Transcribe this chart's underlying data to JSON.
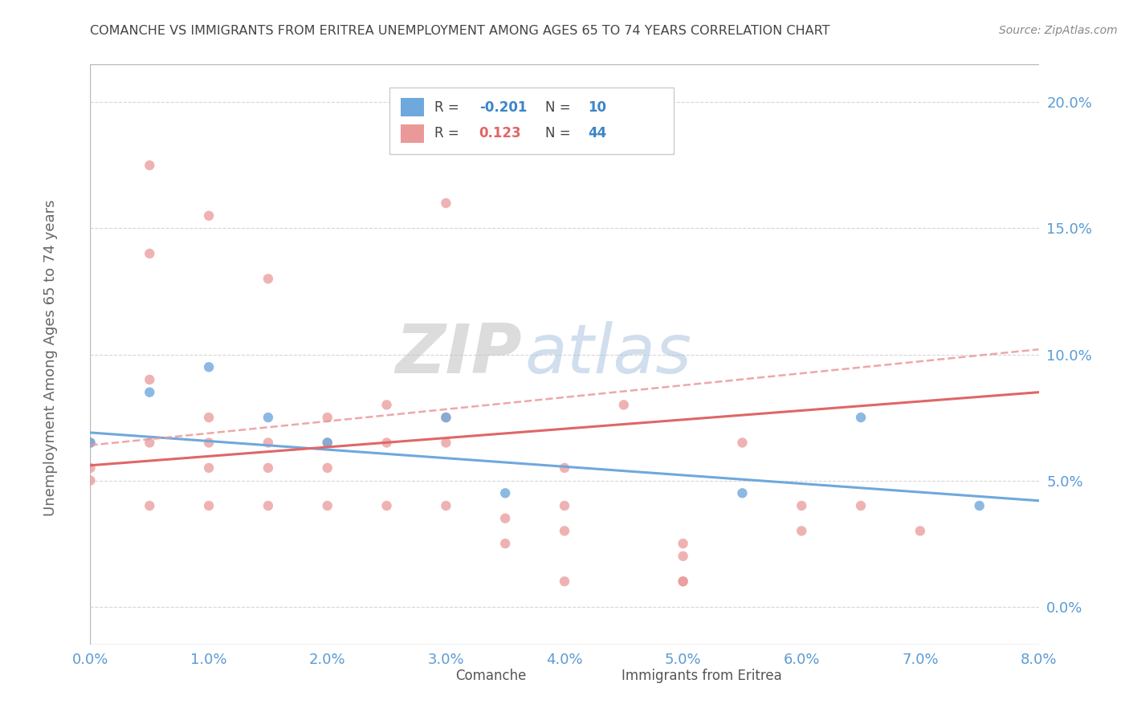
{
  "title": "COMANCHE VS IMMIGRANTS FROM ERITREA UNEMPLOYMENT AMONG AGES 65 TO 74 YEARS CORRELATION CHART",
  "source": "Source: ZipAtlas.com",
  "ylabel": "Unemployment Among Ages 65 to 74 years",
  "xlim": [
    0.0,
    0.08
  ],
  "ylim": [
    -0.015,
    0.215
  ],
  "yticks": [
    0.0,
    0.05,
    0.1,
    0.15,
    0.2
  ],
  "ytick_labels": [
    "0.0%",
    "5.0%",
    "10.0%",
    "15.0%",
    "20.0%"
  ],
  "xticks": [
    0.0,
    0.01,
    0.02,
    0.03,
    0.04,
    0.05,
    0.06,
    0.07,
    0.08
  ],
  "xtick_labels": [
    "0.0%",
    "1.0%",
    "2.0%",
    "3.0%",
    "4.0%",
    "5.0%",
    "6.0%",
    "7.0%",
    "8.0%"
  ],
  "watermark_zip": "ZIP",
  "watermark_atlas": "atlas",
  "comanche": {
    "label": "Comanche",
    "color": "#6fa8dc",
    "R": -0.201,
    "N": 10,
    "x": [
      0.0,
      0.005,
      0.01,
      0.015,
      0.02,
      0.03,
      0.035,
      0.055,
      0.065,
      0.075
    ],
    "y": [
      0.065,
      0.085,
      0.095,
      0.075,
      0.065,
      0.075,
      0.045,
      0.045,
      0.075,
      0.04
    ]
  },
  "eritrea": {
    "label": "Immigrants from Eritrea",
    "color": "#e06666",
    "dot_color": "#ea9999",
    "R": 0.123,
    "N": 44,
    "x": [
      0.0,
      0.0,
      0.0,
      0.005,
      0.005,
      0.005,
      0.005,
      0.005,
      0.01,
      0.01,
      0.01,
      0.01,
      0.01,
      0.015,
      0.015,
      0.015,
      0.015,
      0.02,
      0.02,
      0.02,
      0.02,
      0.025,
      0.025,
      0.025,
      0.03,
      0.03,
      0.03,
      0.03,
      0.035,
      0.035,
      0.04,
      0.04,
      0.04,
      0.045,
      0.05,
      0.05,
      0.05,
      0.055,
      0.06,
      0.06,
      0.065,
      0.07,
      0.04,
      0.05
    ],
    "y": [
      0.065,
      0.055,
      0.05,
      0.175,
      0.14,
      0.09,
      0.065,
      0.04,
      0.155,
      0.075,
      0.065,
      0.055,
      0.04,
      0.13,
      0.065,
      0.055,
      0.04,
      0.075,
      0.065,
      0.055,
      0.04,
      0.08,
      0.065,
      0.04,
      0.16,
      0.075,
      0.065,
      0.04,
      0.035,
      0.025,
      0.055,
      0.04,
      0.03,
      0.08,
      0.025,
      0.02,
      0.01,
      0.065,
      0.04,
      0.03,
      0.04,
      0.03,
      0.01,
      0.01
    ]
  },
  "blue_line_x": [
    0.0,
    0.08
  ],
  "blue_line_y": [
    0.069,
    0.042
  ],
  "pink_line_x": [
    0.0,
    0.08
  ],
  "pink_line_y": [
    0.056,
    0.085
  ],
  "dashed_line_x": [
    0.0,
    0.08
  ],
  "dashed_line_y": [
    0.064,
    0.102
  ],
  "background_color": "#ffffff",
  "grid_color": "#cccccc",
  "title_color": "#444444",
  "source_color": "#888888",
  "tick_color": "#5b9bd5",
  "ylabel_color": "#666666"
}
